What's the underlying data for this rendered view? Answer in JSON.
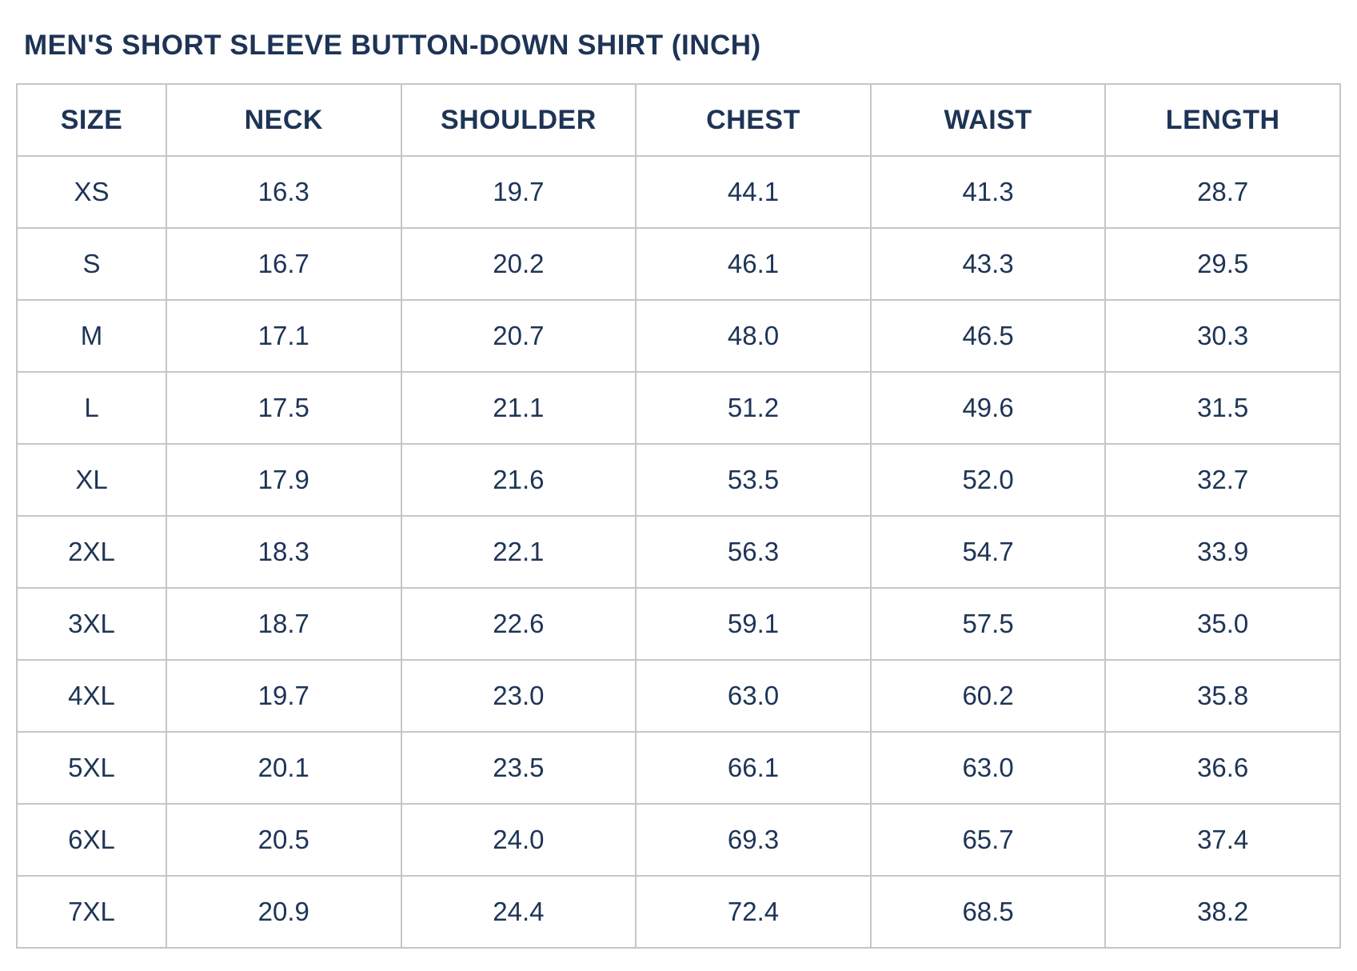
{
  "page": {
    "title": "MEN'S SHORT SLEEVE BUTTON-DOWN SHIRT (INCH)"
  },
  "colors": {
    "text_navy": "#1e3456",
    "border_gray": "#c6c6c6",
    "background": "#ffffff"
  },
  "chart_data": {
    "type": "table",
    "title": "MEN'S SHORT SLEEVE BUTTON-DOWN SHIRT (INCH)",
    "columns": [
      "SIZE",
      "NECK",
      "SHOULDER",
      "CHEST",
      "WAIST",
      "LENGTH"
    ],
    "rows": [
      [
        "XS",
        "16.3",
        "19.7",
        "44.1",
        "41.3",
        "28.7"
      ],
      [
        "S",
        "16.7",
        "20.2",
        "46.1",
        "43.3",
        "29.5"
      ],
      [
        "M",
        "17.1",
        "20.7",
        "48.0",
        "46.5",
        "30.3"
      ],
      [
        "L",
        "17.5",
        "21.1",
        "51.2",
        "49.6",
        "31.5"
      ],
      [
        "XL",
        "17.9",
        "21.6",
        "53.5",
        "52.0",
        "32.7"
      ],
      [
        "2XL",
        "18.3",
        "22.1",
        "56.3",
        "54.7",
        "33.9"
      ],
      [
        "3XL",
        "18.7",
        "22.6",
        "59.1",
        "57.5",
        "35.0"
      ],
      [
        "4XL",
        "19.7",
        "23.0",
        "63.0",
        "60.2",
        "35.8"
      ],
      [
        "5XL",
        "20.1",
        "23.5",
        "66.1",
        "63.0",
        "36.6"
      ],
      [
        "6XL",
        "20.5",
        "24.0",
        "69.3",
        "65.7",
        "37.4"
      ],
      [
        "7XL",
        "20.9",
        "24.4",
        "72.4",
        "68.5",
        "38.2"
      ]
    ]
  }
}
